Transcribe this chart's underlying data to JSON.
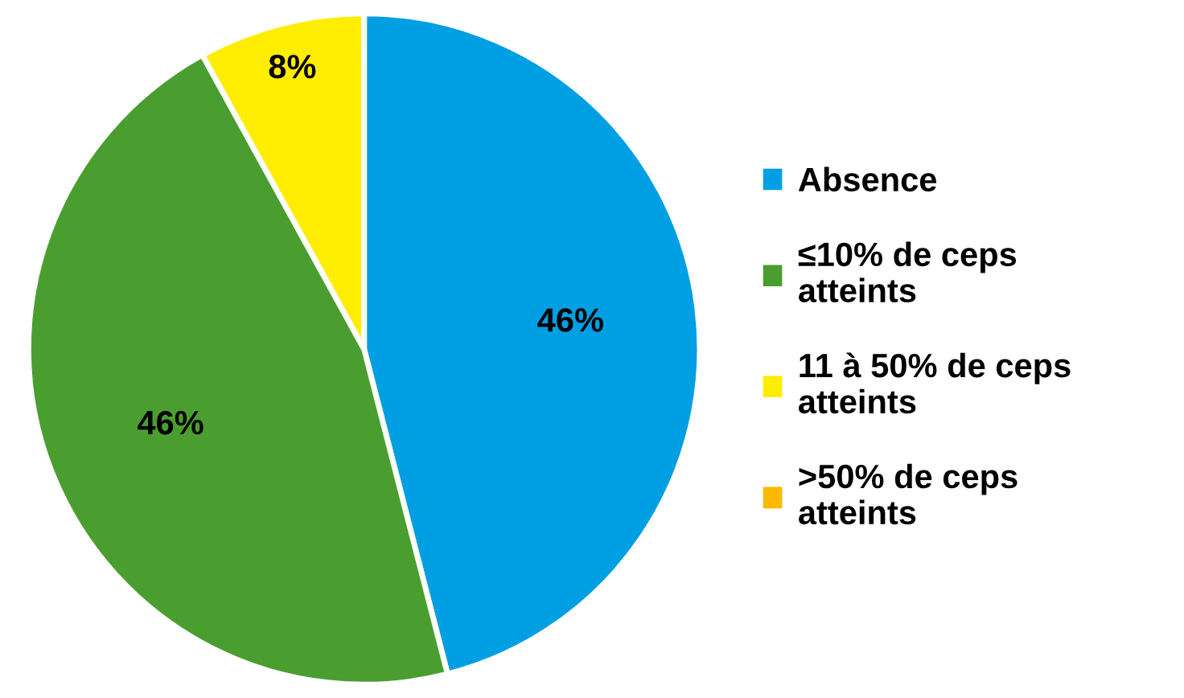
{
  "chart_data": {
    "type": "pie",
    "categories": [
      "Absence",
      "≤10% de ceps atteints",
      "11 à 50% de ceps atteints",
      ">50% de ceps atteints"
    ],
    "values": [
      46,
      46,
      8,
      0
    ],
    "colors": [
      "#009fe3",
      "#4a9e2f",
      "#ffed00",
      "#fbba00"
    ],
    "value_labels": [
      "46%",
      "46%",
      "8%",
      null
    ],
    "legend": "right"
  }
}
